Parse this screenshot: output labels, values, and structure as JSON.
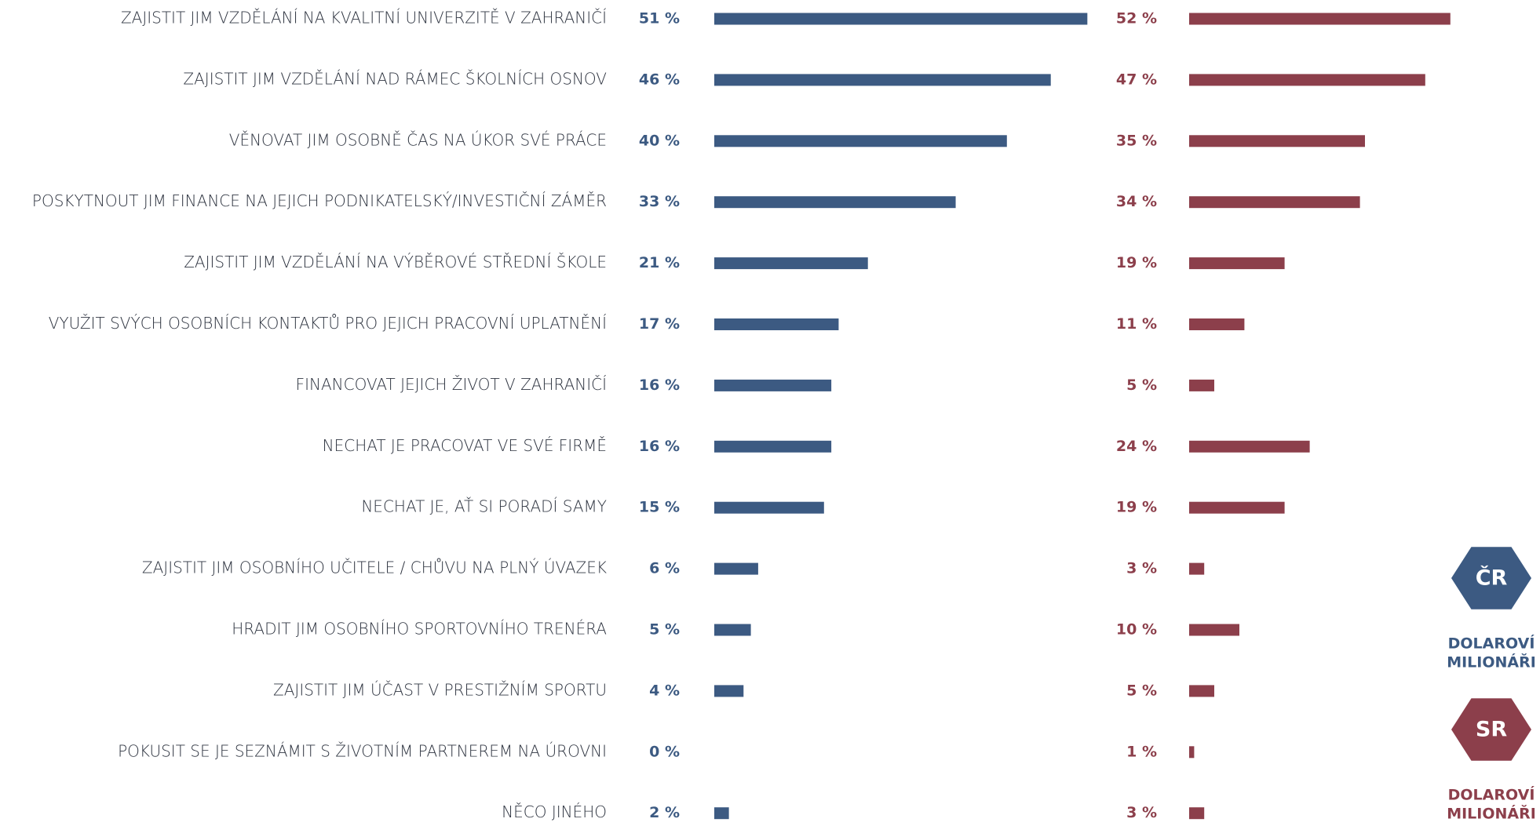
{
  "chart_data": {
    "type": "bar",
    "categories": [
      "ZAJISTIT JIM VZDĚLÁNÍ NA KVALITNÍ UNIVERZITĚ V ZAHRANIČÍ",
      "ZAJISTIT JIM VZDĚLÁNÍ NAD RÁMEC ŠKOLNÍCH OSNOV",
      "VĚNOVAT JIM OSOBNĚ ČAS NA ÚKOR SVÉ PRÁCE",
      "POSKYTNOUT JIM FINANCE NA JEJICH PODNIKATELSKÝ/INVESTIČNÍ ZÁMĚR",
      "ZAJISTIT JIM VZDĚLÁNÍ NA VÝBĚROVÉ STŘEDNÍ ŠKOLE",
      "VYUŽIT SVÝCH OSOBNÍCH KONTAKTŮ  PRO JEJICH PRACOVNÍ UPLATNĚNÍ",
      "FINANCOVAT JEJICH ŽIVOT V ZAHRANIČÍ",
      "NECHAT JE PRACOVAT VE SVÉ FIRMĚ",
      "NECHAT JE, AŤ SI PORADÍ SAMY",
      "ZAJISTIT JIM OSOBNÍHO UČITELE / CHŮVU NA PLNÝ ÚVAZEK",
      "HRADIT JIM OSOBNÍHO SPORTOVNÍHO TRENÉRA",
      "ZAJISTIT JIM ÚČAST V PRESTIŽNÍM SPORTU",
      "POKUSIT SE JE SEZNÁMIT  S ŽIVOTNÍM  PARTNEREM NA ÚROVNI",
      "NĚCO JINÉHO"
    ],
    "series": [
      {
        "name": "ČR",
        "legend_text": [
          "DOLAROVÍ",
          "MILIONÁŘI"
        ],
        "color": "#3c5a82",
        "values": [
          51,
          46,
          40,
          33,
          21,
          17,
          16,
          16,
          15,
          6,
          5,
          4,
          0,
          2
        ],
        "value_labels": [
          "51 %",
          "46 %",
          "40 %",
          "33 %",
          "21 %",
          "17 %",
          "16 %",
          "16 %",
          "15 %",
          "6 %",
          "5 %",
          "4 %",
          "0 %",
          "2 %"
        ]
      },
      {
        "name": "SR",
        "legend_text": [
          "DOLAROVÍ",
          "MILIONÁŘI"
        ],
        "color": "#8c3f4b",
        "values": [
          52,
          47,
          35,
          34,
          19,
          11,
          5,
          24,
          19,
          3,
          10,
          5,
          1,
          3
        ],
        "value_labels": [
          "52 %",
          "47 %",
          "35 %",
          "34 %",
          "19 %",
          "11 %",
          "5 %",
          "24 %",
          "19 %",
          "3 %",
          "10 %",
          "5 %",
          "1 %",
          "3 %"
        ]
      }
    ]
  }
}
